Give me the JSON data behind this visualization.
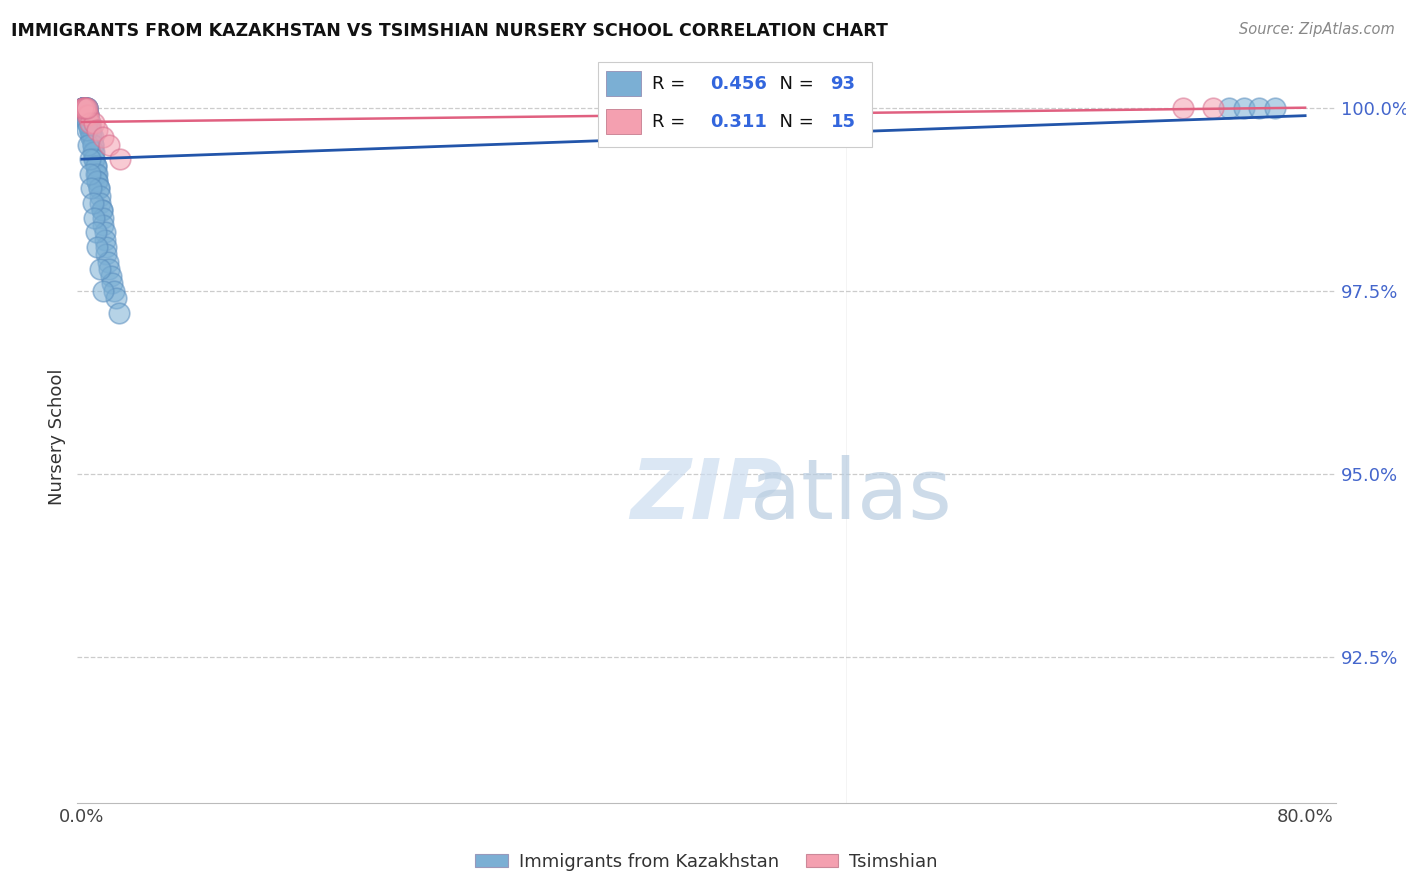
{
  "title": "IMMIGRANTS FROM KAZAKHSTAN VS TSIMSHIAN NURSERY SCHOOL CORRELATION CHART",
  "source": "Source: ZipAtlas.com",
  "ylabel": "Nursery School",
  "legend_blue_label": "Immigrants from Kazakhstan",
  "legend_pink_label": "Tsimshian",
  "R_blue": 0.456,
  "N_blue": 93,
  "R_pink": 0.311,
  "N_pink": 15,
  "blue_color": "#7BAFD4",
  "blue_edge_color": "#5B8FBF",
  "pink_color": "#F4A0B0",
  "pink_edge_color": "#D87090",
  "trend_blue_color": "#2255AA",
  "trend_pink_color": "#E06080",
  "watermark_zip": "ZIP",
  "watermark_atlas": "atlas",
  "ytick_vals": [
    1.0,
    0.975,
    0.95,
    0.925
  ],
  "ytick_labels": [
    "100.0%",
    "97.5%",
    "95.0%",
    "92.5%"
  ],
  "xlim": [
    -0.003,
    0.82
  ],
  "ylim": [
    0.905,
    1.005
  ],
  "blue_x": [
    0.001,
    0.001,
    0.001,
    0.001,
    0.001,
    0.001,
    0.002,
    0.002,
    0.002,
    0.002,
    0.002,
    0.003,
    0.003,
    0.003,
    0.003,
    0.003,
    0.003,
    0.004,
    0.004,
    0.004,
    0.004,
    0.004,
    0.004,
    0.005,
    0.005,
    0.005,
    0.005,
    0.006,
    0.006,
    0.006,
    0.007,
    0.007,
    0.007,
    0.007,
    0.008,
    0.008,
    0.008,
    0.009,
    0.009,
    0.009,
    0.01,
    0.01,
    0.01,
    0.011,
    0.011,
    0.012,
    0.012,
    0.013,
    0.013,
    0.014,
    0.014,
    0.015,
    0.015,
    0.016,
    0.016,
    0.017,
    0.018,
    0.019,
    0.02,
    0.021,
    0.022,
    0.024,
    0.001,
    0.001,
    0.001,
    0.001,
    0.001,
    0.001,
    0.001,
    0.001,
    0.001,
    0.001,
    0.001,
    0.001,
    0.002,
    0.002,
    0.002,
    0.003,
    0.003,
    0.004,
    0.005,
    0.005,
    0.006,
    0.007,
    0.008,
    0.009,
    0.01,
    0.012,
    0.014,
    0.75,
    0.76,
    0.77,
    0.78
  ],
  "blue_y": [
    1.0,
    1.0,
    1.0,
    1.0,
    1.0,
    1.0,
    1.0,
    1.0,
    1.0,
    1.0,
    1.0,
    1.0,
    1.0,
    1.0,
    1.0,
    0.999,
    0.999,
    0.999,
    0.999,
    0.999,
    0.998,
    0.998,
    0.998,
    0.998,
    0.997,
    0.997,
    0.997,
    0.997,
    0.996,
    0.996,
    0.996,
    0.995,
    0.995,
    0.994,
    0.994,
    0.993,
    0.993,
    0.992,
    0.992,
    0.991,
    0.991,
    0.99,
    0.99,
    0.989,
    0.989,
    0.988,
    0.987,
    0.986,
    0.986,
    0.985,
    0.984,
    0.983,
    0.982,
    0.981,
    0.98,
    0.979,
    0.978,
    0.977,
    0.976,
    0.975,
    0.974,
    0.972,
    1.0,
    1.0,
    1.0,
    1.0,
    1.0,
    1.0,
    1.0,
    1.0,
    1.0,
    1.0,
    1.0,
    1.0,
    1.0,
    1.0,
    1.0,
    0.998,
    0.997,
    0.995,
    0.993,
    0.991,
    0.989,
    0.987,
    0.985,
    0.983,
    0.981,
    0.978,
    0.975,
    1.0,
    1.0,
    1.0,
    1.0
  ],
  "pink_x": [
    0.001,
    0.002,
    0.003,
    0.004,
    0.005,
    0.008,
    0.01,
    0.014,
    0.018,
    0.025,
    0.001,
    0.002,
    0.003,
    0.72,
    0.74
  ],
  "pink_y": [
    1.0,
    1.0,
    0.999,
    0.999,
    0.998,
    0.998,
    0.997,
    0.996,
    0.995,
    0.993,
    1.0,
    1.0,
    1.0,
    1.0,
    1.0
  ]
}
